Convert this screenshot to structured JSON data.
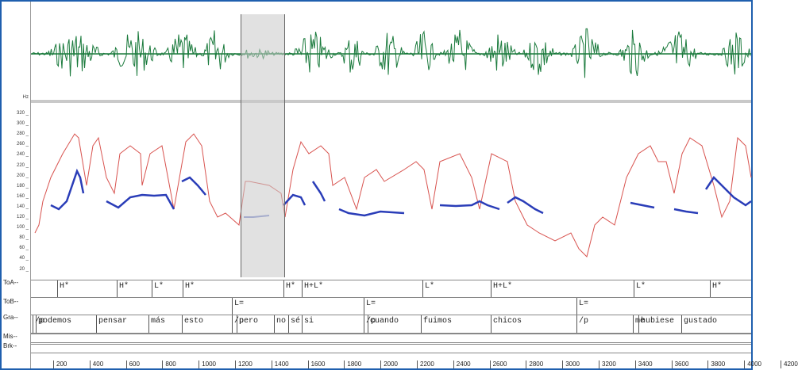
{
  "colors": {
    "waveform": "#1a7a3c",
    "pitch_red": "#d8534f",
    "pitch_blue": "#2a3db8"
  },
  "left_labels": {
    "hz": "Hz",
    "y_ticks": [
      "320",
      "300",
      "280",
      "260",
      "240",
      "220",
      "200",
      "180",
      "160",
      "140",
      "120",
      "100",
      "80",
      "60",
      "40",
      "20"
    ]
  },
  "tiers": [
    {
      "name": "ToA--",
      "boxes": [
        "H*",
        "H*",
        "L*",
        "H*",
        "H*",
        "H+L*",
        "L*",
        "H+L*",
        "L*",
        "H*"
      ]
    },
    {
      "name": "ToB--",
      "boxes": [
        "L=",
        "L=",
        "L="
      ]
    },
    {
      "name": "Gra--",
      "boxes": [
        "/p",
        "podemos",
        "pensar",
        "más",
        "esto",
        "/p",
        "pero",
        "no",
        "sé",
        "si",
        "/p",
        "cuando",
        "fuimos",
        "chicos",
        "/p",
        "me",
        "hubiese",
        "gustado"
      ]
    },
    {
      "name": "Mis--",
      "boxes": []
    },
    {
      "name": "Brk--",
      "boxes": []
    }
  ],
  "ruler": [
    "200",
    "400",
    "600",
    "800",
    "1000",
    "1200",
    "1400",
    "1600",
    "1800",
    "2000",
    "2200",
    "2400",
    "2600",
    "2800",
    "3000",
    "3200",
    "3400",
    "3600",
    "3800",
    "4000",
    "4200"
  ]
}
